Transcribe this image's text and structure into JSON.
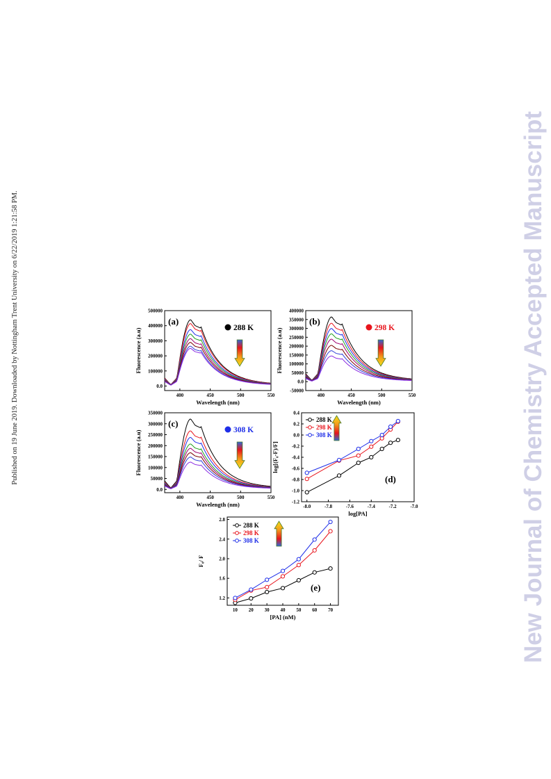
{
  "side_note": "Published on 19 June 2019. Downloaded by Nottingham Trent University on 6/22/2019 1:21:58 PM.",
  "watermark": "New Journal of Chemistry Accepted Manuscript",
  "colors": {
    "k288": "#000000",
    "k298": "#e8141c",
    "k308": "#1e2ee8"
  },
  "chart_data": [
    {
      "id": "a",
      "type": "line",
      "panel_label": "(a)",
      "temperature_label": "288 K",
      "temperature_color": "#000000",
      "xlabel": "Wavelength (nm)",
      "ylabel": "Fluorescence (a.u)",
      "xlim": [
        375,
        550
      ],
      "ylim": [
        -30000,
        500000
      ],
      "xticks": [
        400,
        450,
        500,
        550
      ],
      "yticks": [
        0,
        100000,
        200000,
        300000,
        400000,
        500000
      ],
      "arrow": "down",
      "peak_wavelength": 418,
      "series_peaks": [
        440000,
        415000,
        375000,
        345000,
        315000,
        290000,
        265000,
        250000
      ],
      "series_colors": [
        "#000000",
        "#e8141c",
        "#1e2ee8",
        "#1f9e1f",
        "#a0006e",
        "#7a0000",
        "#3040d8",
        "#8a2be2"
      ]
    },
    {
      "id": "b",
      "type": "line",
      "panel_label": "(b)",
      "temperature_label": "298 K",
      "temperature_color": "#e8141c",
      "xlabel": "Wavelength (nm)",
      "ylabel": "Fluorescence (a.u)",
      "xlim": [
        375,
        550
      ],
      "ylim": [
        -50000,
        400000
      ],
      "xticks": [
        400,
        450,
        500,
        550
      ],
      "yticks": [
        -50000,
        0,
        50000,
        100000,
        150000,
        200000,
        250000,
        300000,
        350000,
        400000
      ],
      "arrow": "down",
      "peak_wavelength": 418,
      "series_peaks": [
        365000,
        330000,
        300000,
        270000,
        240000,
        205000,
        175000,
        145000
      ],
      "series_colors": [
        "#000000",
        "#e8141c",
        "#1e2ee8",
        "#1f9e1f",
        "#a0006e",
        "#7a0000",
        "#3040d8",
        "#8a2be2"
      ]
    },
    {
      "id": "c",
      "type": "line",
      "panel_label": "(c)",
      "temperature_label": "308 K",
      "temperature_color": "#1e2ee8",
      "xlabel": "Wavelength (nm)",
      "ylabel": "Fluorescence (a.u)",
      "xlim": [
        375,
        550
      ],
      "ylim": [
        -15000,
        350000
      ],
      "xticks": [
        400,
        450,
        500,
        550
      ],
      "yticks": [
        0,
        50000,
        100000,
        150000,
        200000,
        250000,
        300000,
        350000
      ],
      "arrow": "down",
      "peak_wavelength": 418,
      "series_peaks": [
        322000,
        268000,
        238000,
        208000,
        188000,
        168000,
        148000,
        125000
      ],
      "series_colors": [
        "#000000",
        "#e8141c",
        "#1e2ee8",
        "#1f9e1f",
        "#a0006e",
        "#7a0000",
        "#3040d8",
        "#8a2be2"
      ]
    },
    {
      "id": "d",
      "type": "line",
      "panel_label": "(d)",
      "xlabel": "log[PA]",
      "ylabel": "log[(F₀-F)/F]",
      "xlim": [
        -8.05,
        -7.0
      ],
      "ylim": [
        -1.2,
        0.4
      ],
      "xticks": [
        -8.0,
        -7.8,
        -7.6,
        -7.4,
        -7.2,
        -7.0
      ],
      "yticks": [
        -1.2,
        -1.0,
        -0.8,
        -0.6,
        -0.4,
        -0.2,
        0.0,
        0.2,
        0.4
      ],
      "legend_position": "top-left",
      "arrow": "up",
      "series": [
        {
          "name": "288 K",
          "color": "#000000",
          "x": [
            -8.0,
            -7.7,
            -7.52,
            -7.4,
            -7.3,
            -7.22,
            -7.15
          ],
          "y": [
            -1.03,
            -0.73,
            -0.5,
            -0.4,
            -0.25,
            -0.14,
            -0.09
          ]
        },
        {
          "name": "298 K",
          "color": "#e8141c",
          "x": [
            -8.0,
            -7.7,
            -7.52,
            -7.4,
            -7.3,
            -7.22,
            -7.15
          ],
          "y": [
            -0.79,
            -0.46,
            -0.37,
            -0.21,
            -0.06,
            0.1,
            0.24
          ]
        },
        {
          "name": "308 K",
          "color": "#1e2ee8",
          "x": [
            -8.0,
            -7.7,
            -7.52,
            -7.4,
            -7.3,
            -7.22,
            -7.15
          ],
          "y": [
            -0.68,
            -0.45,
            -0.25,
            -0.11,
            0.0,
            0.15,
            0.25
          ]
        }
      ]
    },
    {
      "id": "e",
      "type": "line",
      "panel_label": "(e)",
      "xlabel": "[PA] (nM)",
      "ylabel": "F₀/ F",
      "xlim": [
        5,
        75
      ],
      "ylim": [
        1.05,
        2.85
      ],
      "xticks": [
        10,
        20,
        30,
        40,
        50,
        60,
        70
      ],
      "yticks": [
        1.2,
        1.6,
        2.0,
        2.4,
        2.8
      ],
      "legend_position": "top-left",
      "arrow": "up",
      "series": [
        {
          "name": "288 K",
          "color": "#000000",
          "x": [
            10,
            20,
            30,
            40,
            50,
            60,
            70
          ],
          "y": [
            1.1,
            1.19,
            1.32,
            1.4,
            1.56,
            1.72,
            1.8
          ]
        },
        {
          "name": "298 K",
          "color": "#e8141c",
          "x": [
            10,
            20,
            30,
            40,
            50,
            60,
            70
          ],
          "y": [
            1.16,
            1.35,
            1.42,
            1.64,
            1.87,
            2.17,
            2.56
          ]
        },
        {
          "name": "308 K",
          "color": "#1e2ee8",
          "x": [
            10,
            20,
            30,
            40,
            50,
            60,
            70
          ],
          "y": [
            1.2,
            1.37,
            1.57,
            1.75,
            1.99,
            2.39,
            2.75
          ]
        }
      ]
    }
  ]
}
